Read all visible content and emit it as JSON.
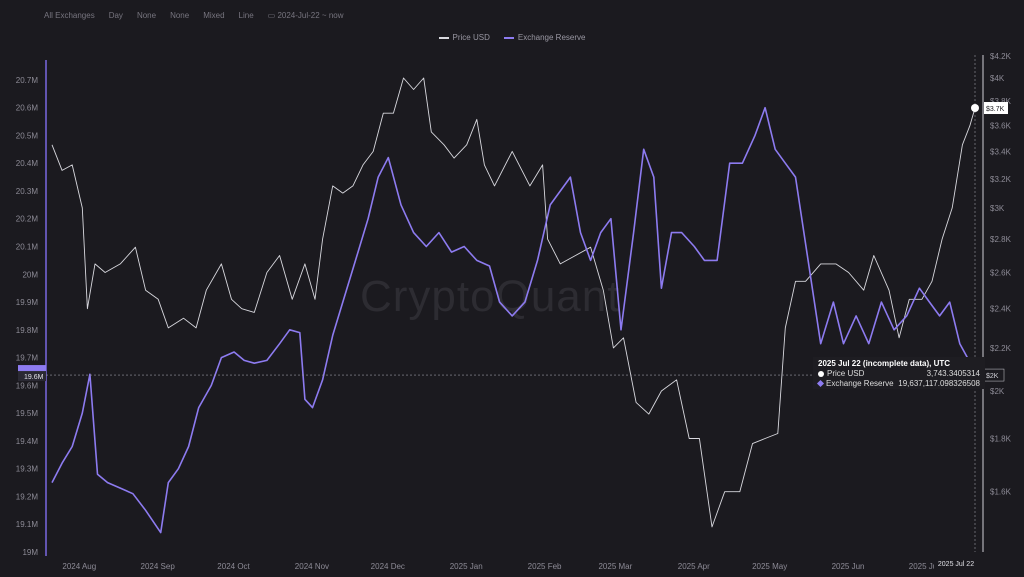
{
  "toolbar": {
    "exchange": "All Exchanges",
    "window": "Day",
    "ma1": "None",
    "ma2": "None",
    "scale": "Mixed",
    "chart_style": "Line",
    "date_range": "2024-Jul-22 ~ now"
  },
  "watermark": "CryptoQuant",
  "tooltip": {
    "title": "2025 Jul 22 (incomplete data), UTC",
    "price_label": "Price USD",
    "price_value": "3,743.3405314",
    "reserve_label": "Exchange Reserve",
    "reserve_value": "19,637,117.098326508"
  },
  "badges": {
    "left_value": "19.6M",
    "right_price": "$3.7K",
    "right_reserve": "$2K",
    "x_date": "2025 Jul 22"
  },
  "colors": {
    "price": "#d8d8de",
    "reserve": "#8d7bf0",
    "background": "#1b1a1f"
  },
  "chart_data": {
    "type": "line",
    "title": "",
    "legend": [
      "Price USD",
      "Exchange Reserve"
    ],
    "x_labels": [
      "2024 Aug",
      "2024 Sep",
      "2024 Oct",
      "2024 Nov",
      "2024 Dec",
      "2025 Jan",
      "2025 Feb",
      "2025 Mar",
      "2025 Apr",
      "2025 May",
      "2025 Jun",
      "2025 Jul"
    ],
    "y_left_ticks": [
      "20.7M",
      "20.6M",
      "20.5M",
      "20.4M",
      "20.3M",
      "20.2M",
      "20.1M",
      "20M",
      "19.9M",
      "19.8M",
      "19.7M",
      "19.6M",
      "19.5M",
      "19.4M",
      "19.3M",
      "19.2M",
      "19.1M",
      "19M"
    ],
    "y_right_ticks": [
      "$4.2K",
      "$4K",
      "$3.8K",
      "$3.6K",
      "$3.4K",
      "$3.2K",
      "$3K",
      "$2.8K",
      "$2.6K",
      "$2.4K",
      "$2.2K",
      "$2K",
      "$1.8K",
      "$1.6K"
    ],
    "ylim_left": [
      19000000,
      20750000
    ],
    "ylim_right": [
      1400,
      4200
    ],
    "y_right_scale": "log",
    "x_range": [
      "2024-07-22",
      "2025-07-22"
    ],
    "series": [
      {
        "name": "Price USD",
        "axis": "right",
        "points": [
          [
            "2024-07-22",
            3450
          ],
          [
            "2024-07-26",
            3260
          ],
          [
            "2024-07-30",
            3300
          ],
          [
            "2024-08-03",
            3000
          ],
          [
            "2024-08-05",
            2400
          ],
          [
            "2024-08-08",
            2650
          ],
          [
            "2024-08-12",
            2600
          ],
          [
            "2024-08-18",
            2650
          ],
          [
            "2024-08-24",
            2750
          ],
          [
            "2024-08-28",
            2500
          ],
          [
            "2024-09-02",
            2450
          ],
          [
            "2024-09-06",
            2300
          ],
          [
            "2024-09-12",
            2350
          ],
          [
            "2024-09-17",
            2300
          ],
          [
            "2024-09-21",
            2500
          ],
          [
            "2024-09-27",
            2650
          ],
          [
            "2024-10-01",
            2450
          ],
          [
            "2024-10-05",
            2400
          ],
          [
            "2024-10-10",
            2380
          ],
          [
            "2024-10-15",
            2600
          ],
          [
            "2024-10-20",
            2700
          ],
          [
            "2024-10-25",
            2450
          ],
          [
            "2024-10-30",
            2650
          ],
          [
            "2024-11-03",
            2450
          ],
          [
            "2024-11-06",
            2800
          ],
          [
            "2024-11-10",
            3150
          ],
          [
            "2024-11-14",
            3100
          ],
          [
            "2024-11-18",
            3150
          ],
          [
            "2024-11-22",
            3300
          ],
          [
            "2024-11-26",
            3400
          ],
          [
            "2024-11-30",
            3700
          ],
          [
            "2024-12-04",
            3700
          ],
          [
            "2024-12-08",
            4000
          ],
          [
            "2024-12-12",
            3900
          ],
          [
            "2024-12-16",
            4000
          ],
          [
            "2024-12-19",
            3550
          ],
          [
            "2024-12-24",
            3450
          ],
          [
            "2024-12-28",
            3350
          ],
          [
            "2025-01-02",
            3450
          ],
          [
            "2025-01-06",
            3650
          ],
          [
            "2025-01-09",
            3300
          ],
          [
            "2025-01-13",
            3150
          ],
          [
            "2025-01-20",
            3400
          ],
          [
            "2025-01-27",
            3150
          ],
          [
            "2025-02-01",
            3300
          ],
          [
            "2025-02-03",
            2800
          ],
          [
            "2025-02-08",
            2650
          ],
          [
            "2025-02-14",
            2700
          ],
          [
            "2025-02-20",
            2750
          ],
          [
            "2025-02-25",
            2500
          ],
          [
            "2025-03-01",
            2200
          ],
          [
            "2025-03-05",
            2250
          ],
          [
            "2025-03-10",
            1950
          ],
          [
            "2025-03-15",
            1900
          ],
          [
            "2025-03-20",
            2000
          ],
          [
            "2025-03-26",
            2050
          ],
          [
            "2025-03-31",
            1800
          ],
          [
            "2025-04-04",
            1800
          ],
          [
            "2025-04-09",
            1480
          ],
          [
            "2025-04-14",
            1600
          ],
          [
            "2025-04-20",
            1600
          ],
          [
            "2025-04-25",
            1780
          ],
          [
            "2025-04-30",
            1800
          ],
          [
            "2025-05-05",
            1820
          ],
          [
            "2025-05-08",
            2300
          ],
          [
            "2025-05-12",
            2550
          ],
          [
            "2025-05-16",
            2550
          ],
          [
            "2025-05-22",
            2650
          ],
          [
            "2025-05-28",
            2650
          ],
          [
            "2025-06-02",
            2600
          ],
          [
            "2025-06-08",
            2500
          ],
          [
            "2025-06-12",
            2700
          ],
          [
            "2025-06-18",
            2500
          ],
          [
            "2025-06-22",
            2250
          ],
          [
            "2025-06-26",
            2450
          ],
          [
            "2025-07-01",
            2450
          ],
          [
            "2025-07-05",
            2550
          ],
          [
            "2025-07-09",
            2800
          ],
          [
            "2025-07-13",
            3000
          ],
          [
            "2025-07-17",
            3450
          ],
          [
            "2025-07-20",
            3600
          ],
          [
            "2025-07-22",
            3743
          ]
        ]
      },
      {
        "name": "Exchange Reserve",
        "axis": "left",
        "points": [
          [
            "2024-07-22",
            19250000
          ],
          [
            "2024-07-26",
            19320000
          ],
          [
            "2024-07-30",
            19380000
          ],
          [
            "2024-08-03",
            19500000
          ],
          [
            "2024-08-06",
            19640000
          ],
          [
            "2024-08-09",
            19280000
          ],
          [
            "2024-08-13",
            19250000
          ],
          [
            "2024-08-18",
            19230000
          ],
          [
            "2024-08-23",
            19210000
          ],
          [
            "2024-08-28",
            19150000
          ],
          [
            "2024-09-03",
            19070000
          ],
          [
            "2024-09-06",
            19250000
          ],
          [
            "2024-09-10",
            19300000
          ],
          [
            "2024-09-14",
            19380000
          ],
          [
            "2024-09-18",
            19520000
          ],
          [
            "2024-09-23",
            19600000
          ],
          [
            "2024-09-27",
            19700000
          ],
          [
            "2024-10-02",
            19720000
          ],
          [
            "2024-10-06",
            19690000
          ],
          [
            "2024-10-10",
            19680000
          ],
          [
            "2024-10-15",
            19690000
          ],
          [
            "2024-10-20",
            19750000
          ],
          [
            "2024-10-24",
            19800000
          ],
          [
            "2024-10-28",
            19790000
          ],
          [
            "2024-10-30",
            19550000
          ],
          [
            "2024-11-02",
            19520000
          ],
          [
            "2024-11-06",
            19620000
          ],
          [
            "2024-11-10",
            19780000
          ],
          [
            "2024-11-14",
            19900000
          ],
          [
            "2024-11-19",
            20050000
          ],
          [
            "2024-11-24",
            20200000
          ],
          [
            "2024-11-28",
            20350000
          ],
          [
            "2024-12-02",
            20420000
          ],
          [
            "2024-12-07",
            20250000
          ],
          [
            "2024-12-12",
            20150000
          ],
          [
            "2024-12-17",
            20100000
          ],
          [
            "2024-12-22",
            20150000
          ],
          [
            "2024-12-27",
            20080000
          ],
          [
            "2025-01-01",
            20100000
          ],
          [
            "2025-01-06",
            20050000
          ],
          [
            "2025-01-11",
            20030000
          ],
          [
            "2025-01-15",
            19900000
          ],
          [
            "2025-01-20",
            19850000
          ],
          [
            "2025-01-25",
            19900000
          ],
          [
            "2025-01-30",
            20050000
          ],
          [
            "2025-02-04",
            20250000
          ],
          [
            "2025-02-08",
            20300000
          ],
          [
            "2025-02-12",
            20350000
          ],
          [
            "2025-02-16",
            20150000
          ],
          [
            "2025-02-20",
            20050000
          ],
          [
            "2025-02-24",
            20150000
          ],
          [
            "2025-02-28",
            20200000
          ],
          [
            "2025-03-04",
            19800000
          ],
          [
            "2025-03-09",
            20150000
          ],
          [
            "2025-03-13",
            20450000
          ],
          [
            "2025-03-17",
            20350000
          ],
          [
            "2025-03-20",
            19950000
          ],
          [
            "2025-03-24",
            20150000
          ],
          [
            "2025-03-28",
            20150000
          ],
          [
            "2025-04-02",
            20100000
          ],
          [
            "2025-04-06",
            20050000
          ],
          [
            "2025-04-11",
            20050000
          ],
          [
            "2025-04-16",
            20400000
          ],
          [
            "2025-04-21",
            20400000
          ],
          [
            "2025-04-26",
            20500000
          ],
          [
            "2025-04-30",
            20600000
          ],
          [
            "2025-05-04",
            20450000
          ],
          [
            "2025-05-08",
            20400000
          ],
          [
            "2025-05-12",
            20350000
          ],
          [
            "2025-05-17",
            20050000
          ],
          [
            "2025-05-22",
            19750000
          ],
          [
            "2025-05-27",
            19900000
          ],
          [
            "2025-05-31",
            19750000
          ],
          [
            "2025-06-05",
            19850000
          ],
          [
            "2025-06-10",
            19750000
          ],
          [
            "2025-06-15",
            19900000
          ],
          [
            "2025-06-20",
            19800000
          ],
          [
            "2025-06-25",
            19850000
          ],
          [
            "2025-06-30",
            19950000
          ],
          [
            "2025-07-04",
            19900000
          ],
          [
            "2025-07-08",
            19850000
          ],
          [
            "2025-07-12",
            19900000
          ],
          [
            "2025-07-16",
            19750000
          ],
          [
            "2025-07-19",
            19700000
          ],
          [
            "2025-07-22",
            19637117
          ]
        ]
      }
    ]
  }
}
